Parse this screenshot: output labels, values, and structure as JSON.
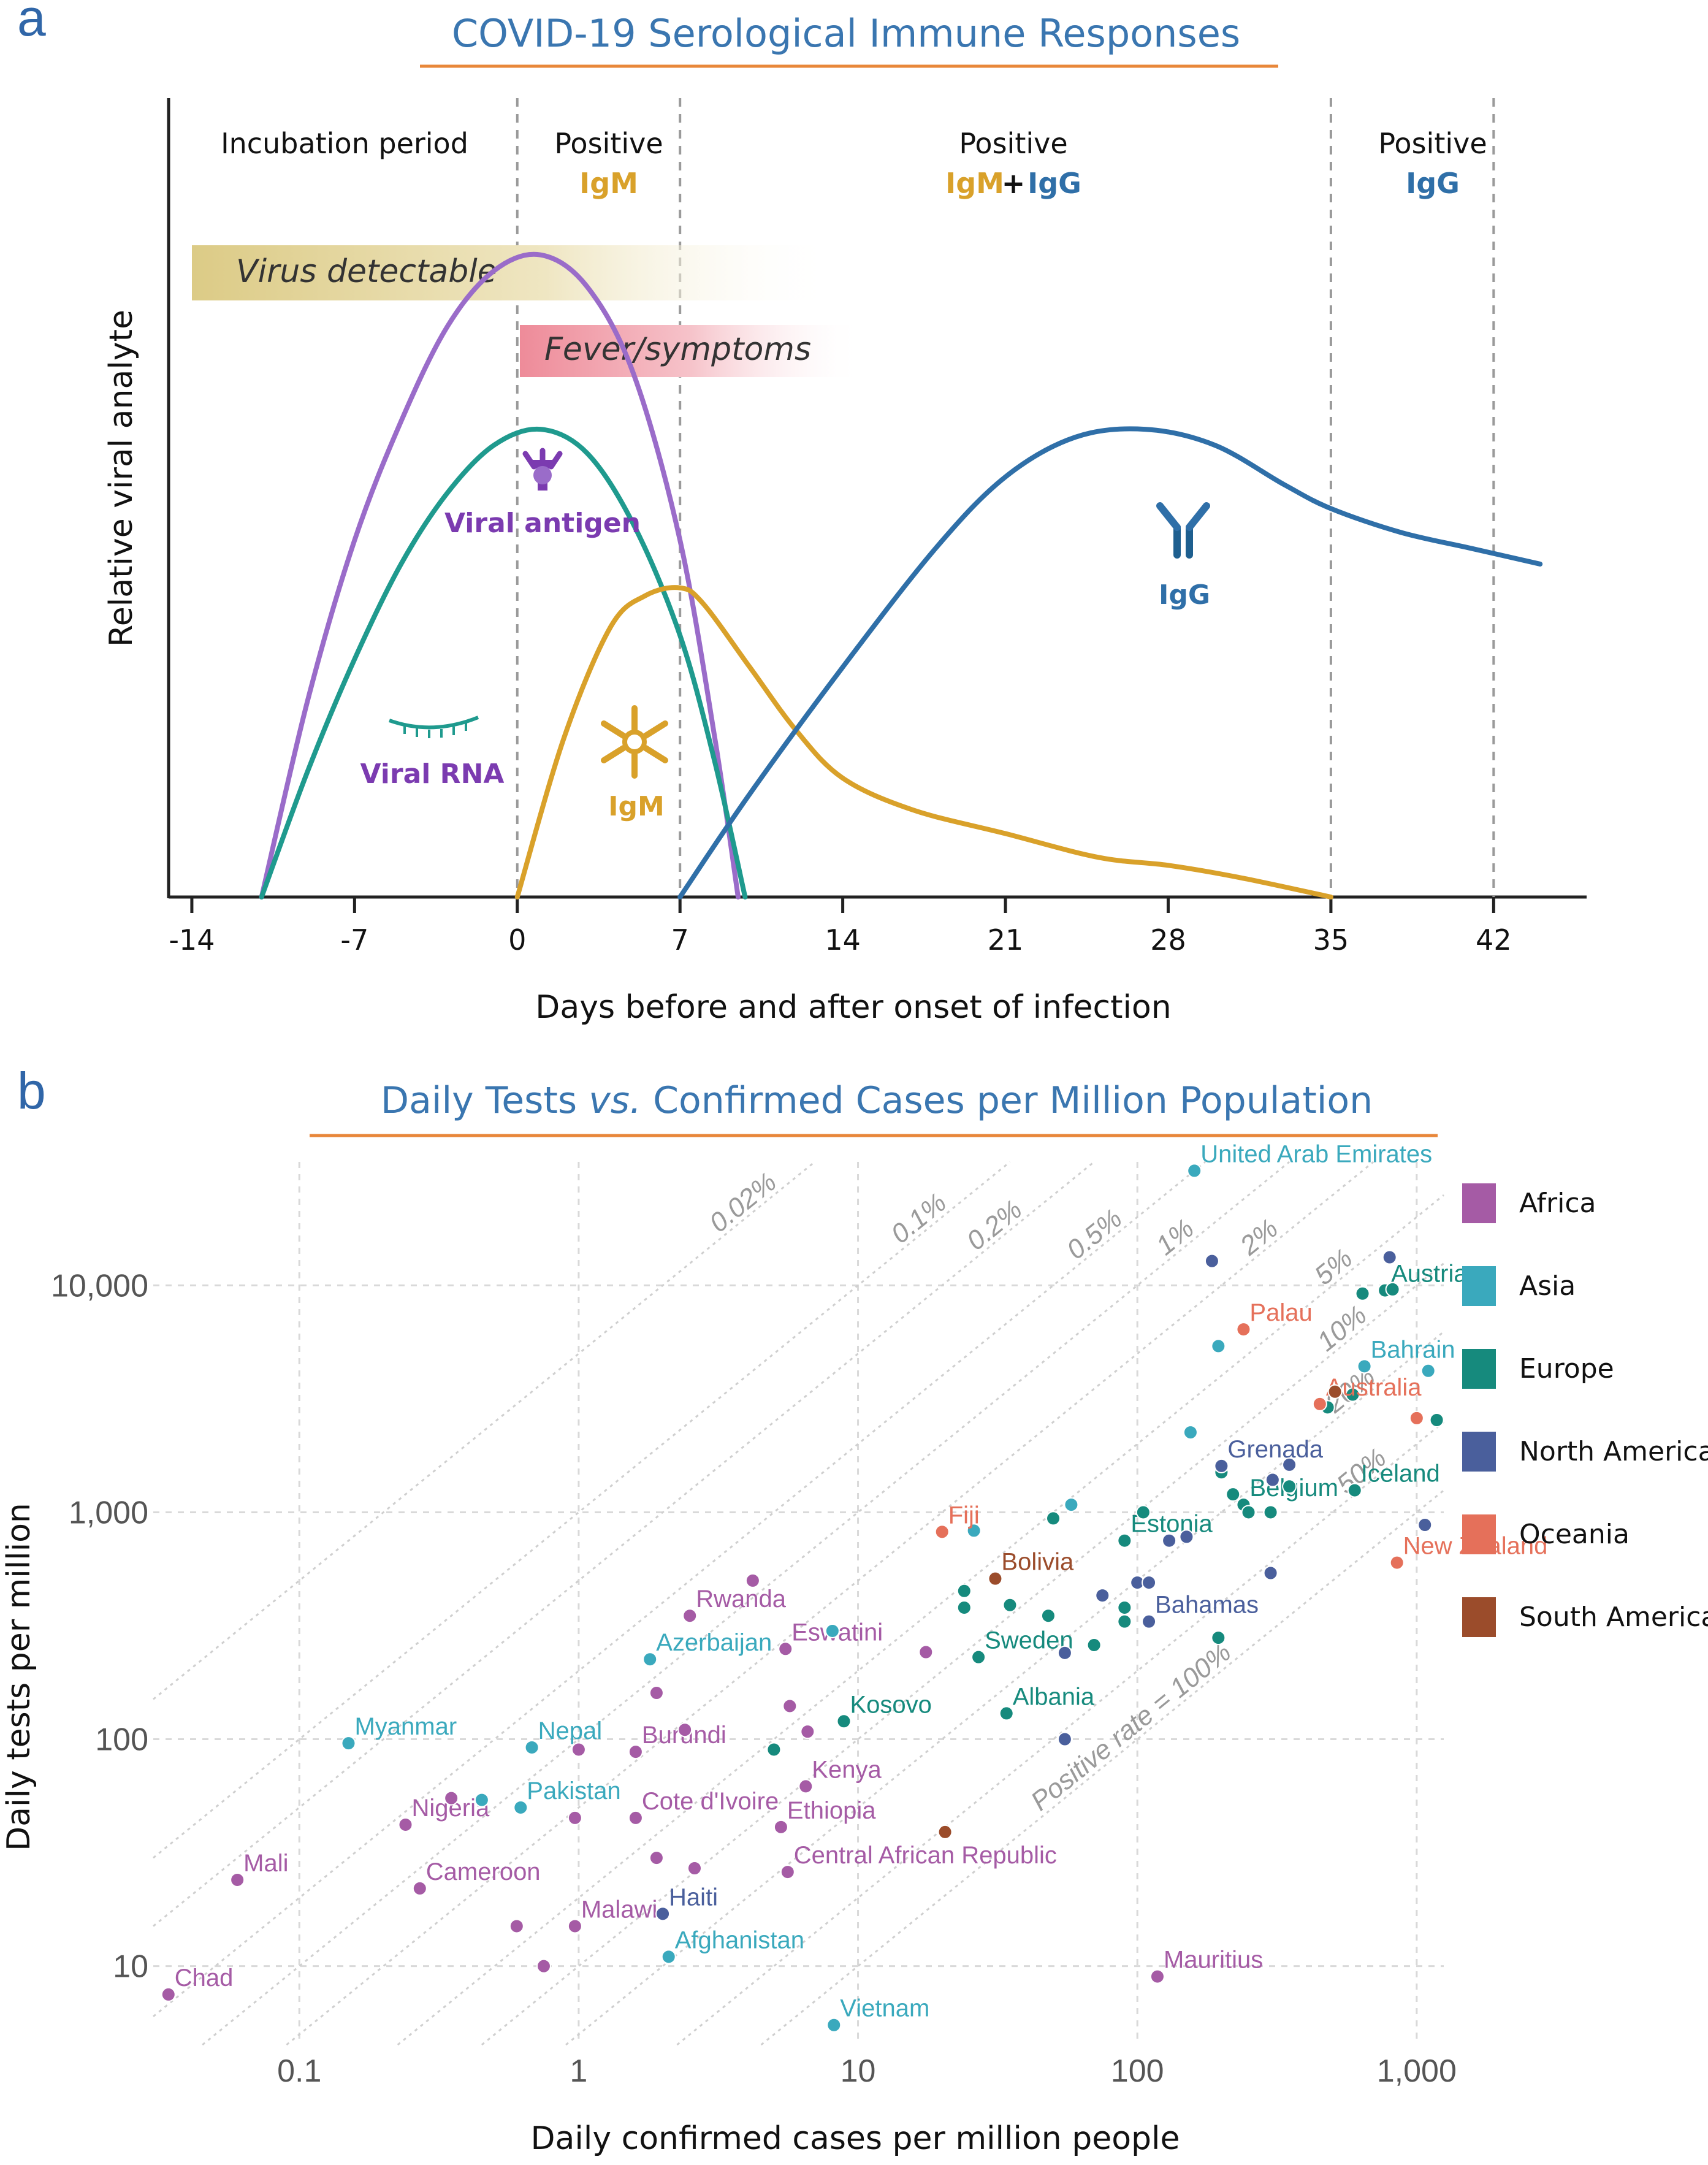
{
  "panel_a": {
    "letter": "a",
    "title": "COVID-19 Serological Immune Responses",
    "periods": [
      {
        "line1": "Incubation period",
        "line2a": "",
        "plus": "",
        "line2b": ""
      },
      {
        "line1": "Positive",
        "line2a": "IgM",
        "plus": "",
        "line2b": ""
      },
      {
        "line1": "Positive",
        "line2a": "IgM",
        "plus": "+",
        "line2b": "IgG"
      },
      {
        "line1": "Positive",
        "line2a": "",
        "plus": "",
        "line2b": "IgG"
      }
    ],
    "bars": {
      "virus": "Virus detectable",
      "fever": "Fever/symptoms"
    },
    "labels": {
      "antigen": "Viral antigen",
      "rna": "Viral RNA",
      "igm": "IgM",
      "igg": "IgG"
    },
    "xlabel": "Days before and after onset of infection",
    "ylabel": "Relative viral analyte",
    "xticks": [
      -14,
      -7,
      0,
      7,
      14,
      21,
      28,
      35,
      42
    ],
    "colors": {
      "title": "#3a76b0",
      "underline": "#e8873a",
      "igm": "#d9a12a",
      "igg": "#2f6fa8",
      "antigen": "#9a6cc9",
      "antigen_text": "#7b3bb0",
      "rna": "#1f9a8e",
      "virus_bar": "#e3d29a",
      "fever_bar": "#ee8f9c"
    }
  },
  "panel_b": {
    "letter": "b",
    "title_pre": "Daily Tests ",
    "title_vs": "vs.",
    "title_post": " Confirmed Cases per Million Population",
    "xlabel": "Daily confirmed cases per million people",
    "ylabel": "Daily tests per million",
    "x_ticks": [
      0.1,
      1,
      10,
      100,
      1000
    ],
    "x_tick_labels": [
      "0.1",
      "1",
      "10",
      "100",
      "1,000"
    ],
    "y_ticks": [
      10,
      100,
      1000,
      10000
    ],
    "y_tick_labels": [
      "10",
      "100",
      "1,000",
      "10,000"
    ],
    "rate_lines": [
      {
        "label": "0.02%",
        "rate": 0.0002
      },
      {
        "label": "0.1%",
        "rate": 0.001
      },
      {
        "label": "0.2%",
        "rate": 0.002
      },
      {
        "label": "0.5%",
        "rate": 0.005
      },
      {
        "label": "1%",
        "rate": 0.01
      },
      {
        "label": "2%",
        "rate": 0.02
      },
      {
        "label": "5%",
        "rate": 0.05
      },
      {
        "label": "10%",
        "rate": 0.1
      },
      {
        "label": "20%",
        "rate": 0.2
      },
      {
        "label": "50%",
        "rate": 0.5
      },
      {
        "label": "Positive rate = 100%",
        "rate": 1.0
      }
    ],
    "legend": [
      {
        "name": "Africa",
        "color": "#a55ba5"
      },
      {
        "name": "Asia",
        "color": "#3aa9bd"
      },
      {
        "name": "Europe",
        "color": "#168a7d"
      },
      {
        "name": "North America",
        "color": "#4a5f9c"
      },
      {
        "name": "Oceania",
        "color": "#e5705a"
      },
      {
        "name": "South America",
        "color": "#9b4c2b"
      }
    ]
  },
  "chart_data": [
    {
      "type": "line",
      "title": "COVID-19 Serological Immune Responses",
      "xlabel": "Days before and after onset of infection",
      "ylabel": "Relative viral analyte",
      "xlim": [
        -15,
        46
      ],
      "ylim": [
        0,
        1
      ],
      "x_ticks": [
        -14,
        -7,
        0,
        7,
        14,
        21,
        28,
        35,
        42
      ],
      "series": [
        {
          "name": "Viral antigen",
          "x": [
            -11,
            -9,
            -7,
            -5,
            -3,
            -1,
            1,
            3,
            5,
            7,
            8.5,
            9.5
          ],
          "y": [
            0,
            0.25,
            0.45,
            0.6,
            0.72,
            0.79,
            0.81,
            0.77,
            0.66,
            0.45,
            0.2,
            0
          ]
        },
        {
          "name": "Viral RNA",
          "x": [
            -11,
            -9,
            -7,
            -5,
            -3,
            -1,
            1,
            3,
            5,
            7,
            8.5,
            9.8
          ],
          "y": [
            0,
            0.16,
            0.3,
            0.42,
            0.51,
            0.57,
            0.59,
            0.56,
            0.47,
            0.33,
            0.17,
            0
          ]
        },
        {
          "name": "IgM",
          "x": [
            0,
            2,
            4,
            5.5,
            7,
            8,
            10,
            12,
            14,
            17,
            21,
            25,
            28,
            31,
            35
          ],
          "y": [
            0,
            0.2,
            0.34,
            0.38,
            0.39,
            0.37,
            0.29,
            0.21,
            0.15,
            0.11,
            0.08,
            0.05,
            0.04,
            0.025,
            0
          ]
        },
        {
          "name": "IgG",
          "x": [
            7,
            10,
            14,
            18,
            21,
            24,
            27,
            30,
            33,
            35,
            38,
            41,
            44
          ],
          "y": [
            0,
            0.13,
            0.29,
            0.44,
            0.53,
            0.58,
            0.59,
            0.57,
            0.52,
            0.49,
            0.46,
            0.44,
            0.42
          ]
        }
      ],
      "annotations": [
        "Incubation period",
        "Positive IgM",
        "Positive IgM + IgG",
        "Positive IgG",
        "Virus detectable",
        "Fever/symptoms",
        "Viral antigen",
        "Viral RNA",
        "IgM",
        "IgG"
      ]
    },
    {
      "type": "scatter",
      "title": "Daily Tests vs. Confirmed Cases per Million Population",
      "xlabel": "Daily confirmed cases per million people",
      "ylabel": "Daily tests per million",
      "x_scale": "log",
      "y_scale": "log",
      "xlim": [
        0.03,
        1250
      ],
      "ylim": [
        4.5,
        35000
      ],
      "series": [
        {
          "name": "Africa",
          "color": "#a55ba5",
          "points": [
            {
              "label": "Chad",
              "x": 0.034,
              "y": 7.5
            },
            {
              "label": "Mali",
              "x": 0.06,
              "y": 24
            },
            {
              "label": "Nigeria",
              "x": 0.24,
              "y": 42
            },
            {
              "label": "Cameroon",
              "x": 0.27,
              "y": 22
            },
            {
              "label": "Malawi",
              "x": 0.97,
              "y": 15
            },
            {
              "label": "Rwanda",
              "x": 2.5,
              "y": 350
            },
            {
              "label": "Burundi",
              "x": 1.6,
              "y": 88
            },
            {
              "label": "Cote d'Ivoire",
              "x": 1.6,
              "y": 45
            },
            {
              "label": "Eswatini",
              "x": 5.5,
              "y": 250
            },
            {
              "label": "Kenya",
              "x": 6.5,
              "y": 62
            },
            {
              "label": "Ethiopia",
              "x": 5.3,
              "y": 41
            },
            {
              "label": "Central African Republic",
              "x": 5.6,
              "y": 26
            },
            {
              "label": "Mauritius",
              "x": 118,
              "y": 9
            },
            {
              "label": "",
              "x": 0.6,
              "y": 15
            },
            {
              "label": "",
              "x": 0.75,
              "y": 10
            },
            {
              "label": "",
              "x": 1.0,
              "y": 90
            },
            {
              "label": "",
              "x": 0.97,
              "y": 45
            },
            {
              "label": "",
              "x": 1.9,
              "y": 160
            },
            {
              "label": "",
              "x": 1.9,
              "y": 30
            },
            {
              "label": "",
              "x": 2.6,
              "y": 27
            },
            {
              "label": "",
              "x": 4.2,
              "y": 500
            },
            {
              "label": "",
              "x": 5.7,
              "y": 140
            },
            {
              "label": "",
              "x": 6.6,
              "y": 108
            },
            {
              "label": "",
              "x": 17.5,
              "y": 242
            },
            {
              "label": "",
              "x": 0.35,
              "y": 55
            },
            {
              "label": "",
              "x": 2.4,
              "y": 110
            }
          ]
        },
        {
          "name": "Asia",
          "color": "#3aa9bd",
          "points": [
            {
              "label": "Myanmar",
              "x": 0.15,
              "y": 96
            },
            {
              "label": "Nepal",
              "x": 0.68,
              "y": 92
            },
            {
              "label": "Pakistan",
              "x": 0.62,
              "y": 50
            },
            {
              "label": "Azerbaijan",
              "x": 1.8,
              "y": 225
            },
            {
              "label": "Afghanistan",
              "x": 2.1,
              "y": 11
            },
            {
              "label": "Vietnam",
              "x": 8.2,
              "y": 5.5
            },
            {
              "label": "United Arab Emirates",
              "x": 160,
              "y": 32000
            },
            {
              "label": "Bahrain",
              "x": 650,
              "y": 4400
            },
            {
              "label": "",
              "x": 0.45,
              "y": 54
            },
            {
              "label": "",
              "x": 8.1,
              "y": 300
            },
            {
              "label": "",
              "x": 26,
              "y": 830
            },
            {
              "label": "",
              "x": 58,
              "y": 1080
            },
            {
              "label": "",
              "x": 155,
              "y": 2250
            },
            {
              "label": "",
              "x": 195,
              "y": 5400
            },
            {
              "label": "",
              "x": 1100,
              "y": 4200
            }
          ]
        },
        {
          "name": "Europe",
          "color": "#168a7d",
          "points": [
            {
              "label": "Austria",
              "x": 770,
              "y": 9500
            },
            {
              "label": "Iceland",
              "x": 600,
              "y": 1250
            },
            {
              "label": "Belgium",
              "x": 240,
              "y": 1080
            },
            {
              "label": "Estonia",
              "x": 90,
              "y": 750
            },
            {
              "label": "Sweden",
              "x": 27,
              "y": 230
            },
            {
              "label": "Kosovo",
              "x": 8.9,
              "y": 120
            },
            {
              "label": "Albania",
              "x": 34,
              "y": 130
            },
            {
              "label": "",
              "x": 5.0,
              "y": 90
            },
            {
              "label": "",
              "x": 24,
              "y": 450
            },
            {
              "label": "",
              "x": 24,
              "y": 380
            },
            {
              "label": "",
              "x": 35,
              "y": 390
            },
            {
              "label": "",
              "x": 48,
              "y": 350
            },
            {
              "label": "",
              "x": 50,
              "y": 940
            },
            {
              "label": "",
              "x": 70,
              "y": 260
            },
            {
              "label": "",
              "x": 90,
              "y": 380
            },
            {
              "label": "",
              "x": 90,
              "y": 330
            },
            {
              "label": "",
              "x": 105,
              "y": 1000
            },
            {
              "label": "",
              "x": 195,
              "y": 280
            },
            {
              "label": "",
              "x": 200,
              "y": 1500
            },
            {
              "label": "",
              "x": 220,
              "y": 1200
            },
            {
              "label": "",
              "x": 250,
              "y": 1000
            },
            {
              "label": "",
              "x": 300,
              "y": 1000
            },
            {
              "label": "",
              "x": 350,
              "y": 1300
            },
            {
              "label": "",
              "x": 480,
              "y": 2900
            },
            {
              "label": "",
              "x": 590,
              "y": 3300
            },
            {
              "label": "",
              "x": 640,
              "y": 9200
            },
            {
              "label": "",
              "x": 820,
              "y": 9600
            },
            {
              "label": "",
              "x": 1180,
              "y": 2550
            }
          ]
        },
        {
          "name": "North America",
          "color": "#4a5f9c",
          "points": [
            {
              "label": "Grenada",
              "x": 200,
              "y": 1600
            },
            {
              "label": "Bahamas",
              "x": 110,
              "y": 330
            },
            {
              "label": "Haiti",
              "x": 2.0,
              "y": 17
            },
            {
              "label": "",
              "x": 55,
              "y": 100
            },
            {
              "label": "",
              "x": 55,
              "y": 240
            },
            {
              "label": "",
              "x": 75,
              "y": 430
            },
            {
              "label": "",
              "x": 100,
              "y": 490
            },
            {
              "label": "",
              "x": 110,
              "y": 490
            },
            {
              "label": "",
              "x": 130,
              "y": 750
            },
            {
              "label": "",
              "x": 150,
              "y": 780
            },
            {
              "label": "",
              "x": 185,
              "y": 12800
            },
            {
              "label": "",
              "x": 300,
              "y": 540
            },
            {
              "label": "",
              "x": 305,
              "y": 1390
            },
            {
              "label": "",
              "x": 350,
              "y": 1620
            },
            {
              "label": "",
              "x": 800,
              "y": 13300
            },
            {
              "label": "",
              "x": 1070,
              "y": 880
            }
          ]
        },
        {
          "name": "Oceania",
          "color": "#e5705a",
          "points": [
            {
              "label": "Palau",
              "x": 240,
              "y": 6400
            },
            {
              "label": "Australia",
              "x": 450,
              "y": 3000
            },
            {
              "label": "New Zealand",
              "x": 850,
              "y": 600
            },
            {
              "label": "Fiji",
              "x": 20,
              "y": 820
            },
            {
              "label": "",
              "x": 1000,
              "y": 2600
            }
          ]
        },
        {
          "name": "South America",
          "color": "#9b4c2b",
          "points": [
            {
              "label": "Bolivia",
              "x": 31,
              "y": 510
            },
            {
              "label": "",
              "x": 20.5,
              "y": 39
            },
            {
              "label": "",
              "x": 510,
              "y": 3400
            }
          ]
        }
      ]
    }
  ]
}
